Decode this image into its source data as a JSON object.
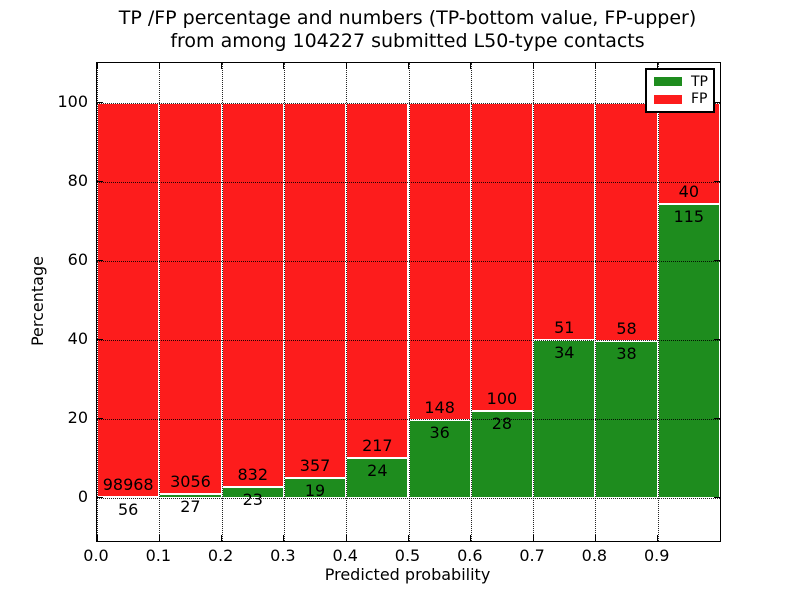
{
  "chart_data": {
    "type": "bar",
    "stacked": true,
    "title_line1": "TP /FP percentage and numbers (TP-bottom value, FP-upper)",
    "title_line2": "from among 104227 submitted L50-type contacts",
    "xlabel": "Predicted probability",
    "ylabel": "Percentage",
    "bin_edges": [
      0.0,
      0.1,
      0.2,
      0.3,
      0.4,
      0.5,
      0.6,
      0.7,
      0.8,
      0.9,
      1.0
    ],
    "series": [
      {
        "name": "TP",
        "color": "#1e8c1e",
        "counts": [
          56,
          27,
          23,
          19,
          24,
          36,
          28,
          34,
          38,
          115
        ]
      },
      {
        "name": "FP",
        "color": "#fd1c1c",
        "counts": [
          98968,
          3056,
          832,
          357,
          217,
          148,
          100,
          51,
          58,
          40
        ]
      }
    ],
    "tp_percent": [
      0.06,
      0.88,
      2.69,
      5.05,
      9.96,
      19.57,
      21.88,
      40.0,
      39.58,
      74.19
    ],
    "x_tick_labels": [
      "0.0",
      "0.1",
      "0.2",
      "0.3",
      "0.4",
      "0.5",
      "0.6",
      "0.7",
      "0.8",
      "0.9"
    ],
    "x_tick_values": [
      0.0,
      0.1,
      0.2,
      0.3,
      0.4,
      0.5,
      0.6,
      0.7,
      0.8,
      0.9
    ],
    "y_tick_labels": [
      "0",
      "20",
      "40",
      "60",
      "80",
      "100"
    ],
    "y_tick_values": [
      0,
      20,
      40,
      60,
      80,
      100
    ],
    "xlim": [
      0.0,
      1.0
    ],
    "ylim": [
      -11,
      110
    ],
    "grid": "dotted",
    "legend_position": "upper right"
  }
}
